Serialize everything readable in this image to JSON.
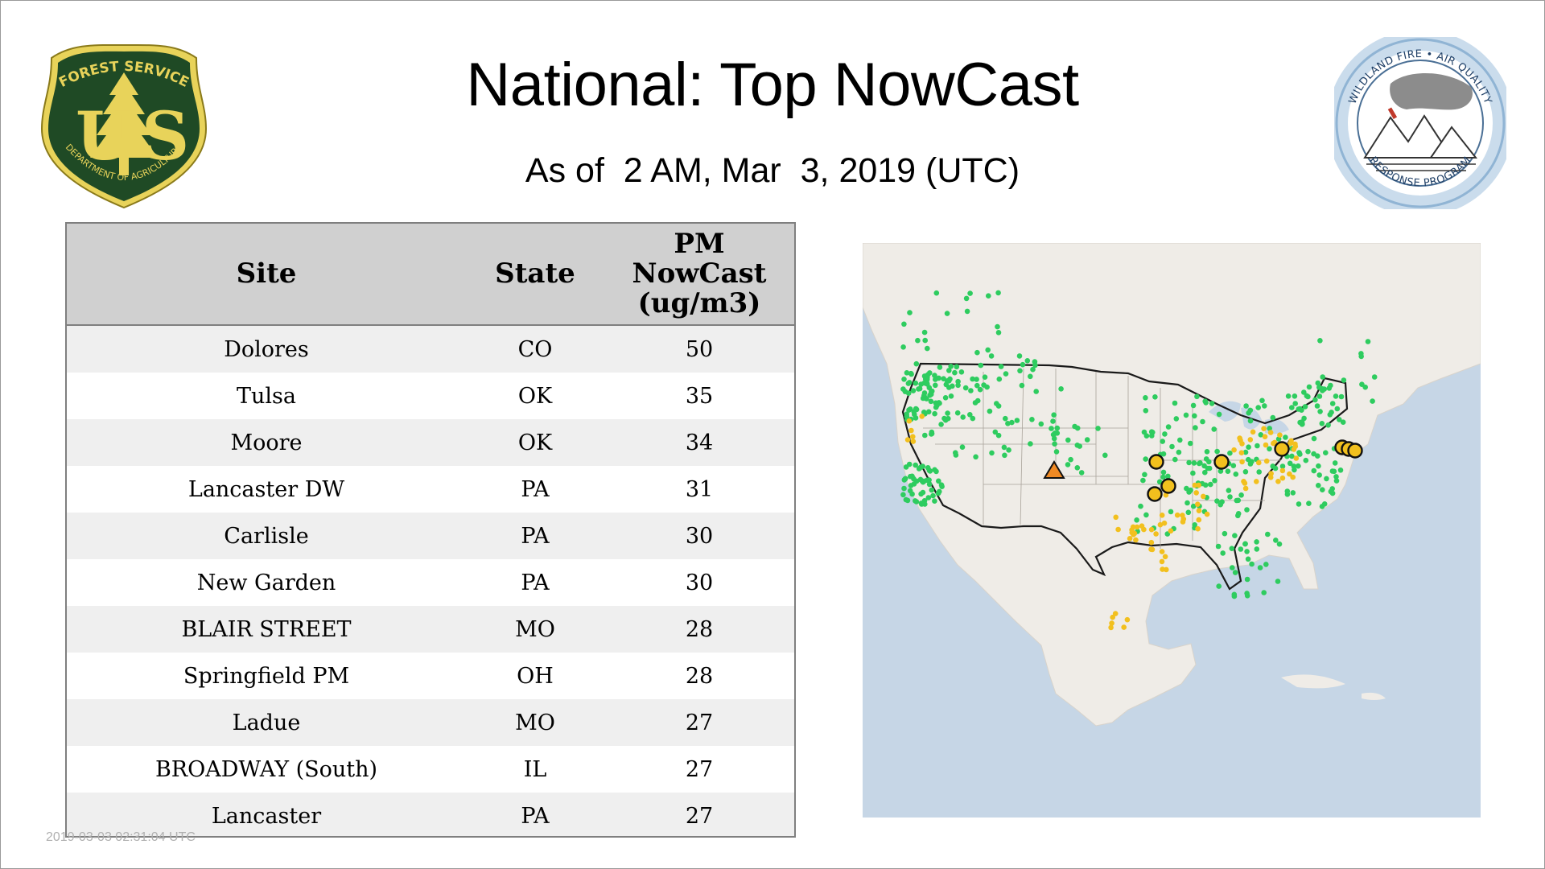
{
  "header": {
    "title": "National: Top NowCast",
    "subtitle": "As of  2 AM, Mar  3, 2019 (UTC)"
  },
  "logos": {
    "usfs": {
      "top_text": "FOREST SERVICE",
      "letters": "U S",
      "bottom_text": "DEPARTMENT OF AGRICULTURE"
    },
    "wildland": {
      "top_text": "WILDLAND FIRE • AIR QUALITY",
      "bottom_text": "RESPONSE PROGRAM"
    }
  },
  "table": {
    "headers": {
      "site": "Site",
      "state": "State",
      "pm": "PM\nNowCast\n(ug/m3)"
    },
    "rows": [
      {
        "site": "Dolores",
        "state": "CO",
        "value": "50"
      },
      {
        "site": "Tulsa",
        "state": "OK",
        "value": "35"
      },
      {
        "site": "Moore",
        "state": "OK",
        "value": "34"
      },
      {
        "site": "Lancaster DW",
        "state": "PA",
        "value": "31"
      },
      {
        "site": "Carlisle",
        "state": "PA",
        "value": "30"
      },
      {
        "site": "New Garden",
        "state": "PA",
        "value": "30"
      },
      {
        "site": "BLAIR STREET",
        "state": "MO",
        "value": "28"
      },
      {
        "site": "Springfield PM",
        "state": "OH",
        "value": "28"
      },
      {
        "site": "Ladue",
        "state": "MO",
        "value": "27"
      },
      {
        "site": "BROADWAY (South)",
        "state": "IL",
        "value": "27"
      },
      {
        "site": "Lancaster",
        "state": "PA",
        "value": "27"
      }
    ]
  },
  "timestamp": "2019-03-03 02:31:04 UTC",
  "map": {
    "colors": {
      "water": "#c6d6e6",
      "land": "#efece7",
      "good": "#2ecc5f",
      "moderate": "#f2c01e",
      "usg": "#f08a24",
      "no_data": "#bdbdbd",
      "border": "#1a1a1a"
    }
  }
}
